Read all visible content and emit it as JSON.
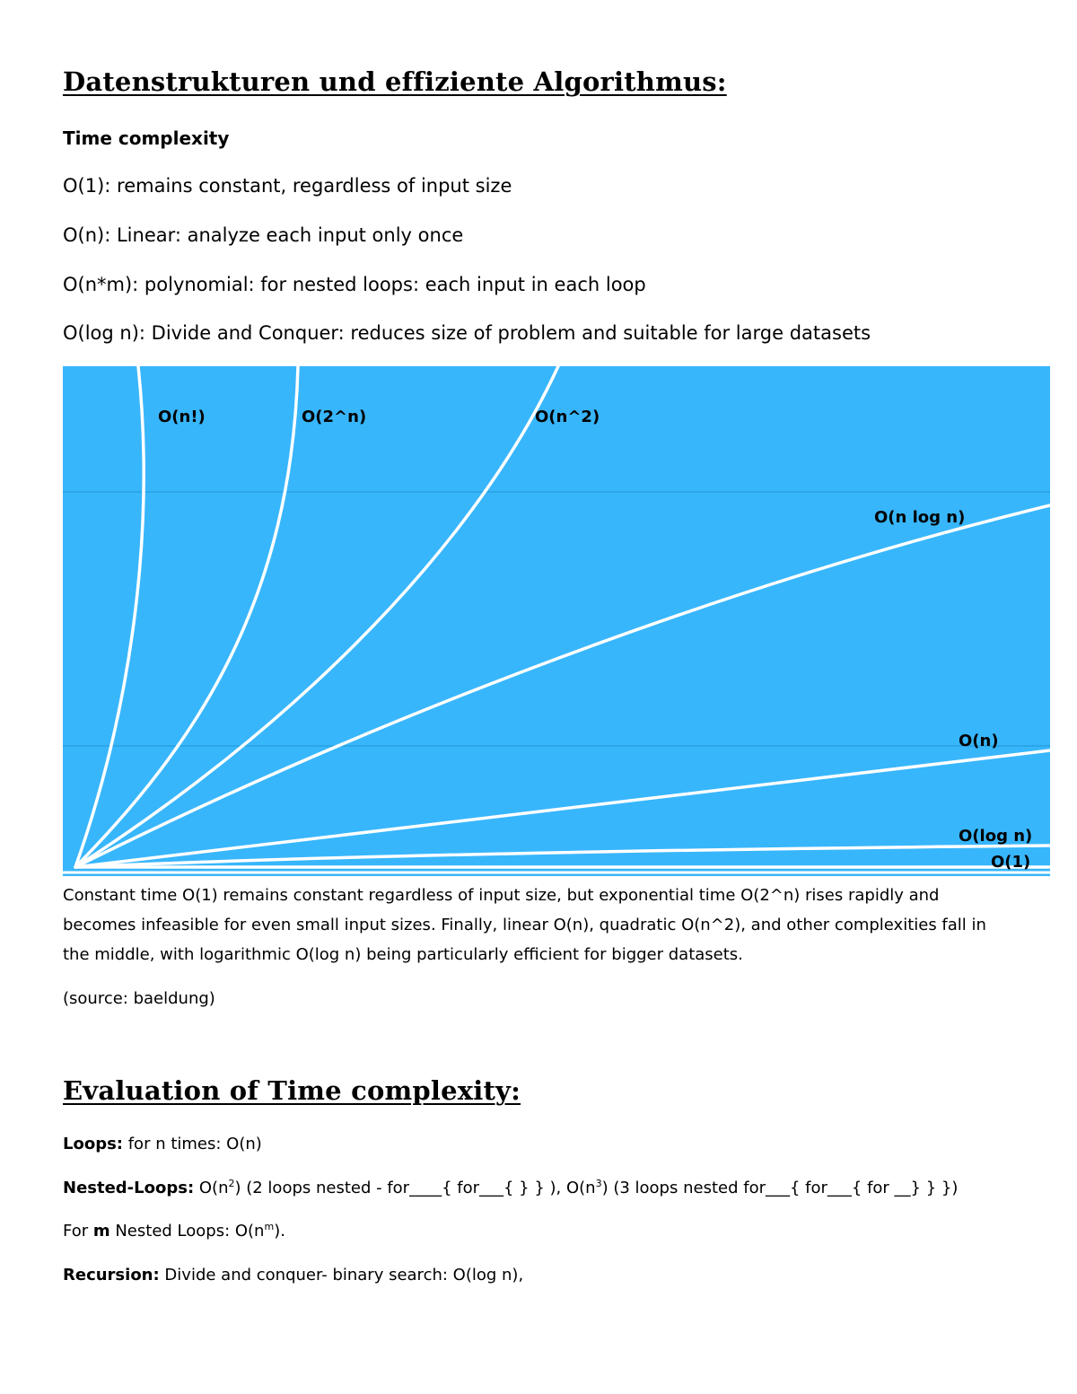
{
  "title": "Datenstrukturen und effiziente Algorithmus:",
  "time_complexity": {
    "heading": "Time complexity",
    "items": [
      "O(1): remains constant, regardless of input size",
      "O(n): Linear: analyze each input only once",
      "O(n*m): polynomial: for nested loops: each input in each loop",
      "O(log n): Divide and Conquer: reduces size of problem and suitable for large datasets"
    ]
  },
  "colors": {
    "chart_bg": "#38b6fc",
    "curve": "#ffffff",
    "gridline": "#2196d6",
    "label": "#000000"
  },
  "chart_data": {
    "type": "line",
    "title": "",
    "xlabel": "",
    "ylabel": "",
    "grid": true,
    "legend": "none",
    "series": [
      {
        "name": "O(n!)",
        "kind": "factorial"
      },
      {
        "name": "O(2^n)",
        "kind": "exponential"
      },
      {
        "name": "O(n^2)",
        "kind": "quadratic"
      },
      {
        "name": "O(n log n)",
        "kind": "linearithmic"
      },
      {
        "name": "O(n)",
        "kind": "linear"
      },
      {
        "name": "O(log n)",
        "kind": "logarithmic"
      },
      {
        "name": "O(1)",
        "kind": "constant"
      }
    ]
  },
  "caption": "Constant time O(1) remains constant regardless of input size, but exponential time O(2^n) rises rapidly and becomes infeasible for even small input sizes. Finally, linear O(n), quadratic O(n^2), and other complexities fall in the middle, with logarithmic O(log n) being particularly efficient for bigger datasets.",
  "source": "(source: baeldung)",
  "evaluation": {
    "title": "Evaluation of Time complexity:",
    "loops": {
      "label": "Loops:",
      "text": " for n times: O(n)"
    },
    "nested": {
      "label": "Nested-Loops:",
      "part1": " O(n",
      "exp1": "2",
      "part2": ") (2 loops nested - for____{ for___{ } } ), O(n",
      "exp2": "3",
      "part3": ") (3 loops nested for___{ for___{ for __} } })"
    },
    "m_nested": {
      "pre": "For ",
      "bold": "m",
      "mid": " Nested Loops: O(n",
      "exp": "m",
      "post": ")."
    },
    "recursion": {
      "label": "Recursion:",
      "text": " Divide and conquer- binary search: O(log n),"
    }
  }
}
